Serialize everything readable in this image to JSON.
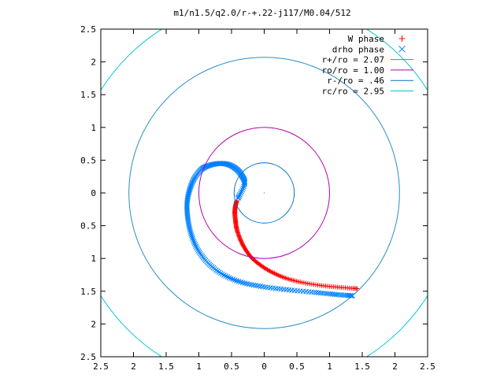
{
  "chart_data": {
    "type": "scatter",
    "title": "m1/n1.5/q2.0/r-+.22-j117/M0.04/512",
    "xlabel": "",
    "ylabel": "",
    "xlim": [
      -2.5,
      2.5
    ],
    "ylim": [
      -2.5,
      2.5
    ],
    "x_ticks": [
      -2.5,
      -2,
      -1.5,
      -1,
      -0.5,
      0,
      0.5,
      1,
      1.5,
      2,
      2.5
    ],
    "y_ticks": [
      -2.5,
      -2,
      -1.5,
      -1,
      -0.5,
      0,
      0.5,
      1,
      1.5,
      2,
      2.5
    ],
    "x_tick_labels": [
      "2.5",
      "2",
      "1.5",
      "1",
      "0.5",
      "0",
      "0.5",
      "1",
      "1.5",
      "2",
      "2.5"
    ],
    "y_tick_labels": [
      "2.5",
      "2",
      "1.5",
      "1",
      "0.5",
      "0",
      "0.5",
      "1",
      "1.5",
      "2",
      "2.5"
    ],
    "grid": false,
    "legend_position": "top-right",
    "series": [
      {
        "name": "W phase",
        "kind": "points",
        "marker": "+",
        "color": "#ff0000",
        "points": [
          [
            -0.42,
            -0.12
          ],
          [
            -0.44,
            -0.2
          ],
          [
            -0.45,
            -0.3
          ],
          [
            -0.44,
            -0.42
          ],
          [
            -0.42,
            -0.55
          ],
          [
            -0.37,
            -0.7
          ],
          [
            -0.3,
            -0.84
          ],
          [
            -0.2,
            -0.98
          ],
          [
            -0.06,
            -1.1
          ],
          [
            0.1,
            -1.2
          ],
          [
            0.3,
            -1.29
          ],
          [
            0.55,
            -1.36
          ],
          [
            0.85,
            -1.41
          ],
          [
            1.15,
            -1.44
          ],
          [
            1.42,
            -1.46
          ]
        ]
      },
      {
        "name": "drho phase",
        "kind": "points",
        "marker": "x",
        "color": "#0080ff",
        "points": [
          [
            -0.4,
            -0.08
          ],
          [
            -0.3,
            0.14
          ],
          [
            -0.34,
            0.26
          ],
          [
            -0.42,
            0.36
          ],
          [
            -0.54,
            0.43
          ],
          [
            -0.68,
            0.45
          ],
          [
            -0.84,
            0.42
          ],
          [
            -0.96,
            0.36
          ],
          [
            -1.07,
            0.22
          ],
          [
            -1.14,
            0.05
          ],
          [
            -1.18,
            -0.15
          ],
          [
            -1.17,
            -0.38
          ],
          [
            -1.12,
            -0.62
          ],
          [
            -1.02,
            -0.86
          ],
          [
            -0.86,
            -1.07
          ],
          [
            -0.64,
            -1.24
          ],
          [
            -0.36,
            -1.36
          ],
          [
            -0.02,
            -1.43
          ],
          [
            0.38,
            -1.48
          ],
          [
            0.8,
            -1.52
          ],
          [
            1.1,
            -1.55
          ],
          [
            1.35,
            -1.57
          ]
        ]
      },
      {
        "name": "r+/ro = 2.07",
        "kind": "circle",
        "radius": 2.07,
        "color": "#2a8fc7"
      },
      {
        "name": "ro/ro = 1.00",
        "kind": "circle",
        "radius": 1.0,
        "color": "#b000b0"
      },
      {
        "name": "r-/ro = .46",
        "kind": "circle",
        "radius": 0.46,
        "color": "#0070c0"
      },
      {
        "name": "rc/ro = 2.95",
        "kind": "circle",
        "radius": 2.95,
        "color": "#00c8d0"
      }
    ]
  }
}
